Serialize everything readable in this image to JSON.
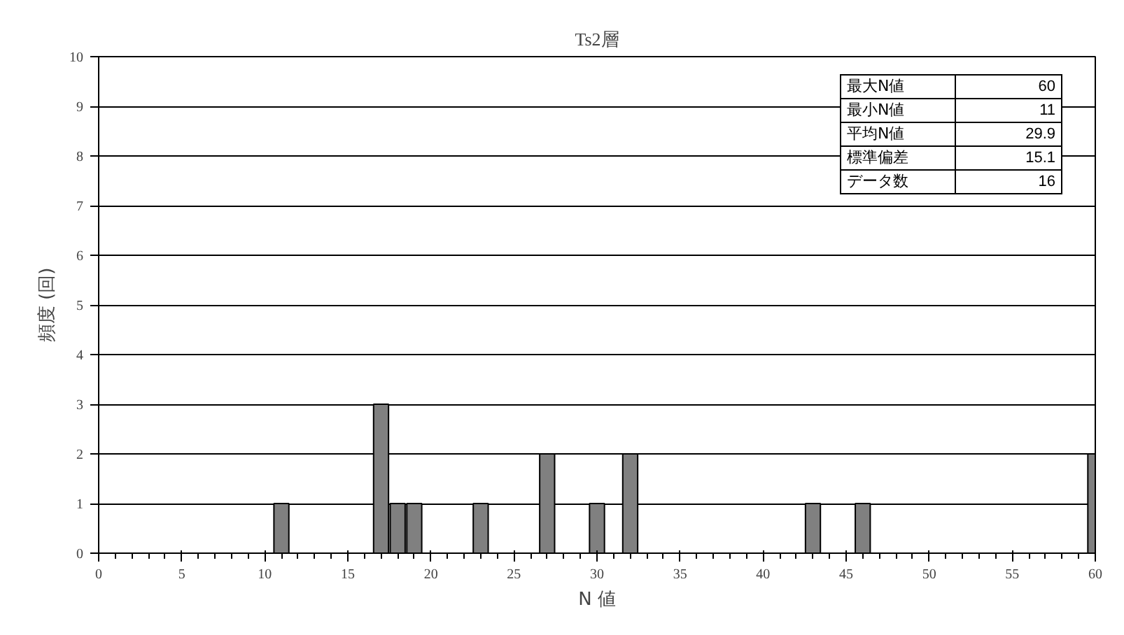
{
  "chart_data": {
    "type": "bar",
    "title": "Ts2層",
    "xlabel": "N 値",
    "ylabel": "頻度 (回)",
    "x": [
      11,
      17,
      18,
      19,
      23,
      27,
      30,
      32,
      43,
      46,
      60
    ],
    "values": [
      1,
      3,
      1,
      1,
      1,
      2,
      1,
      2,
      1,
      1,
      2
    ],
    "color": "#808080",
    "xlim": [
      0,
      60
    ],
    "xticks": [
      0,
      5,
      10,
      15,
      20,
      25,
      30,
      35,
      40,
      45,
      50,
      55,
      60
    ],
    "ylim": [
      0,
      10
    ],
    "yticks": [
      0,
      1,
      2,
      3,
      4,
      5,
      6,
      7,
      8,
      9,
      10
    ],
    "grid": "y",
    "annotations": [
      "最大N値",
      "60",
      "最小N値",
      "11",
      "平均N値",
      "29.9",
      "標準偏差",
      "15.1",
      "データ数",
      "16"
    ]
  }
}
